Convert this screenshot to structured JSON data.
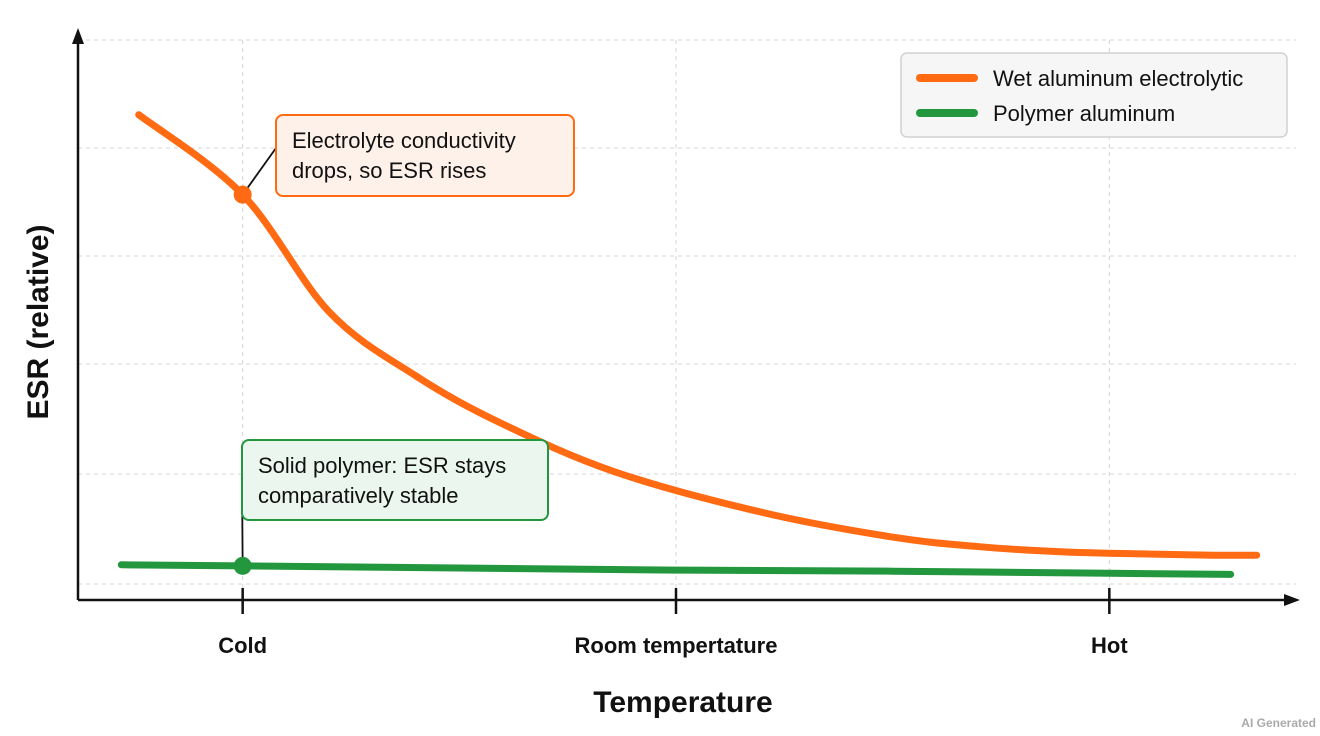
{
  "chart_data": {
    "type": "line",
    "xlabel": "Temperature",
    "ylabel": "ESR (relative)",
    "categories": [
      "Cold",
      "Room tempertature",
      "Hot"
    ],
    "x": [
      -0.14,
      0,
      0.25,
      0.5,
      0.75,
      1.0,
      1.14
    ],
    "series": [
      {
        "name": "Wet aluminum electrolytic",
        "color": "#ff6a13",
        "values": [
          4.4,
          3.65,
          2.55,
          1.95,
          1.5,
          1.05,
          0.67,
          0.44,
          0.35,
          0.3,
          0.28,
          0.27,
          0.27
        ],
        "x": [
          -0.12,
          0,
          0.1,
          0.2,
          0.3,
          0.43,
          0.6,
          0.75,
          0.85,
          0.95,
          1.05,
          1.12,
          1.17
        ]
      },
      {
        "name": "Polymer aluminum",
        "color": "#22973d",
        "values": [
          0.18,
          0.17,
          0.15,
          0.13,
          0.12,
          0.1,
          0.09
        ],
        "x": [
          -0.14,
          0,
          0.25,
          0.5,
          0.75,
          1.0,
          1.14
        ]
      }
    ],
    "xlim": [
      -0.19,
      1.22
    ],
    "ylim": [
      -0.15,
      5.1
    ],
    "grid": true,
    "legend": "top-right",
    "annotations": [
      {
        "text": [
          "Electrolyte conductivity",
          "drops, so ESR rises"
        ],
        "series": 0,
        "x": 0,
        "y": 3.65,
        "border": "#ff6a13",
        "fill": "#fef1e9"
      },
      {
        "text": [
          "Solid polymer: ESR stays",
          "comparatively stable"
        ],
        "series": 1,
        "x": 0,
        "y": 0.17,
        "border": "#22973d",
        "fill": "#eaf6ee"
      }
    ]
  },
  "watermark": "AI Generated"
}
